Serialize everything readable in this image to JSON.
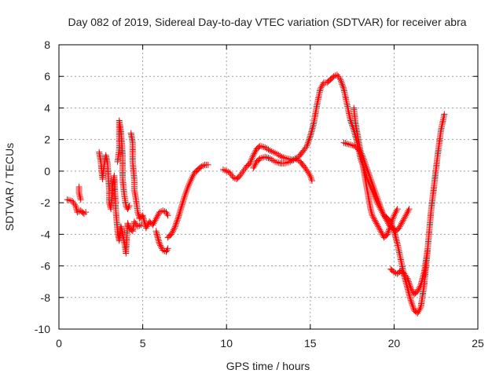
{
  "chart_data": {
    "type": "scatter",
    "title": "Day 082 of 2019, Sidereal Day-to-day VTEC variation (SDTVAR) for receiver abra",
    "xlabel": "GPS time / hours",
    "ylabel": "SDTVAR / TECUs",
    "xlim": [
      0,
      25
    ],
    "ylim": [
      -10,
      8
    ],
    "xticks": [
      0,
      5,
      10,
      15,
      20,
      25
    ],
    "xtick_labels": [
      "0",
      "5",
      "10",
      "15",
      "20",
      "25"
    ],
    "yticks": [
      -10,
      -8,
      -6,
      -4,
      -2,
      0,
      2,
      4,
      6,
      8
    ],
    "ytick_labels": [
      "-10",
      "-8",
      "-6",
      "-4",
      "-2",
      "0",
      "2",
      "4",
      "6",
      "8"
    ],
    "grid": true,
    "marker": "+",
    "color": "#ff0000",
    "series": [
      {
        "name": "segment-1",
        "points": [
          [
            0.5,
            -1.8
          ],
          [
            0.8,
            -1.9
          ],
          [
            1.0,
            -2.2
          ],
          [
            1.1,
            -2.6
          ],
          [
            1.3,
            -2.5
          ],
          [
            1.5,
            -2.7
          ],
          [
            1.6,
            -2.6
          ]
        ]
      },
      {
        "name": "segment-2",
        "points": [
          [
            1.2,
            -1.0
          ],
          [
            1.2,
            -1.4
          ],
          [
            1.3,
            -1.8
          ]
        ]
      },
      {
        "name": "segment-3",
        "points": [
          [
            2.4,
            1.2
          ],
          [
            2.5,
            0.6
          ],
          [
            2.6,
            -0.5
          ],
          [
            2.7,
            0.4
          ],
          [
            2.8,
            1.0
          ],
          [
            2.9,
            0.5
          ],
          [
            3.0,
            -1.2
          ],
          [
            3.0,
            -2.0
          ],
          [
            3.1,
            -2.4
          ],
          [
            3.2,
            -0.8
          ],
          [
            3.3,
            -0.3
          ],
          [
            3.4,
            -2.6
          ],
          [
            3.5,
            -3.8
          ],
          [
            3.6,
            -4.4
          ],
          [
            3.7,
            -3.5
          ],
          [
            3.8,
            -4.0
          ],
          [
            3.9,
            -4.5
          ],
          [
            4.0,
            -5.2
          ],
          [
            4.1,
            -3.3
          ],
          [
            4.2,
            -3.6
          ],
          [
            4.4,
            -3.8
          ],
          [
            4.5,
            -3.2
          ],
          [
            4.7,
            -3.5
          ],
          [
            4.9,
            -3.4
          ]
        ]
      },
      {
        "name": "segment-4",
        "points": [
          [
            3.5,
            0.6
          ],
          [
            3.6,
            1.4
          ],
          [
            3.6,
            3.2
          ],
          [
            3.7,
            2.5
          ],
          [
            3.8,
            1.0
          ],
          [
            3.8,
            -0.5
          ],
          [
            3.9,
            -1.5
          ],
          [
            4.0,
            -2.2
          ],
          [
            4.1,
            -2.4
          ],
          [
            4.2,
            -2.2
          ]
        ]
      },
      {
        "name": "segment-5",
        "points": [
          [
            4.3,
            2.4
          ],
          [
            4.4,
            1.8
          ],
          [
            4.4,
            0.6
          ],
          [
            4.5,
            -0.6
          ],
          [
            4.5,
            -1.2
          ],
          [
            4.6,
            -1.8
          ],
          [
            4.7,
            -2.6
          ],
          [
            4.8,
            -2.9
          ]
        ]
      },
      {
        "name": "segment-6",
        "points": [
          [
            4.8,
            -3.0
          ],
          [
            5.0,
            -2.8
          ],
          [
            5.2,
            -3.6
          ],
          [
            5.4,
            -3.2
          ],
          [
            5.6,
            -3.4
          ],
          [
            5.8,
            -3.0
          ],
          [
            6.0,
            -2.6
          ],
          [
            6.2,
            -2.5
          ],
          [
            6.4,
            -2.6
          ],
          [
            6.5,
            -2.8
          ]
        ]
      },
      {
        "name": "segment-7",
        "points": [
          [
            5.8,
            -3.8
          ],
          [
            6.0,
            -4.6
          ],
          [
            6.2,
            -5.0
          ],
          [
            6.4,
            -5.1
          ],
          [
            6.5,
            -4.9
          ]
        ]
      },
      {
        "name": "segment-8",
        "points": [
          [
            6.5,
            -4.2
          ],
          [
            6.7,
            -4.0
          ],
          [
            6.9,
            -3.6
          ],
          [
            7.1,
            -3.0
          ],
          [
            7.3,
            -2.3
          ],
          [
            7.5,
            -1.6
          ],
          [
            7.7,
            -1.0
          ],
          [
            7.9,
            -0.5
          ],
          [
            8.1,
            -0.1
          ],
          [
            8.3,
            0.1
          ],
          [
            8.5,
            0.3
          ],
          [
            8.7,
            0.4
          ],
          [
            8.9,
            0.4
          ]
        ]
      },
      {
        "name": "segment-9",
        "points": [
          [
            9.8,
            0.1
          ],
          [
            10.0,
            0.0
          ],
          [
            10.2,
            -0.1
          ],
          [
            10.4,
            -0.4
          ],
          [
            10.6,
            -0.5
          ],
          [
            10.8,
            -0.3
          ],
          [
            11.0,
            0.0
          ],
          [
            11.2,
            0.3
          ],
          [
            11.4,
            0.5
          ],
          [
            11.6,
            1.0
          ],
          [
            11.8,
            1.4
          ],
          [
            12.0,
            1.6
          ],
          [
            12.3,
            1.5
          ],
          [
            12.6,
            1.3
          ],
          [
            13.0,
            1.1
          ],
          [
            13.3,
            0.9
          ],
          [
            13.6,
            0.8
          ],
          [
            14.0,
            0.7
          ],
          [
            14.3,
            0.9
          ],
          [
            14.6,
            1.3
          ],
          [
            14.8,
            1.6
          ],
          [
            15.0,
            2.2
          ],
          [
            15.2,
            3.0
          ],
          [
            15.4,
            4.2
          ],
          [
            15.6,
            5.2
          ],
          [
            15.8,
            5.6
          ],
          [
            16.0,
            5.6
          ],
          [
            16.2,
            5.8
          ],
          [
            16.4,
            6.0
          ],
          [
            16.6,
            6.1
          ],
          [
            16.8,
            5.8
          ],
          [
            17.0,
            5.2
          ],
          [
            17.2,
            4.2
          ],
          [
            17.4,
            3.2
          ],
          [
            17.6,
            2.6
          ],
          [
            17.8,
            1.8
          ],
          [
            18.0,
            0.8
          ],
          [
            18.2,
            0.2
          ],
          [
            18.4,
            -0.5
          ],
          [
            18.6,
            -1.0
          ],
          [
            18.8,
            -1.5
          ],
          [
            19.0,
            -2.0
          ],
          [
            19.2,
            -2.4
          ],
          [
            19.4,
            -2.8
          ],
          [
            19.6,
            -3.0
          ],
          [
            19.8,
            -3.2
          ],
          [
            20.0,
            -3.8
          ],
          [
            20.2,
            -4.6
          ],
          [
            20.4,
            -5.6
          ],
          [
            20.6,
            -6.6
          ],
          [
            20.8,
            -7.4
          ],
          [
            21.0,
            -8.2
          ],
          [
            21.2,
            -8.8
          ],
          [
            21.4,
            -9.0
          ],
          [
            21.6,
            -8.6
          ],
          [
            21.8,
            -7.2
          ],
          [
            22.0,
            -5.0
          ],
          [
            22.2,
            -2.6
          ],
          [
            22.4,
            -0.8
          ],
          [
            22.6,
            1.0
          ],
          [
            22.8,
            2.6
          ],
          [
            23.0,
            3.6
          ]
        ]
      },
      {
        "name": "segment-10",
        "points": [
          [
            11.6,
            0.2
          ],
          [
            11.8,
            0.6
          ],
          [
            12.0,
            0.8
          ],
          [
            12.3,
            0.9
          ],
          [
            12.6,
            0.8
          ],
          [
            12.9,
            0.6
          ],
          [
            13.2,
            0.5
          ],
          [
            13.5,
            0.5
          ],
          [
            13.8,
            0.6
          ],
          [
            14.1,
            0.8
          ],
          [
            14.4,
            0.6
          ],
          [
            14.7,
            0.2
          ],
          [
            15.0,
            -0.3
          ],
          [
            15.1,
            -0.6
          ]
        ]
      },
      {
        "name": "segment-11",
        "points": [
          [
            17.0,
            1.8
          ],
          [
            17.3,
            1.7
          ],
          [
            17.6,
            1.6
          ],
          [
            17.9,
            1.4
          ],
          [
            18.1,
            1.0
          ],
          [
            18.3,
            0.4
          ],
          [
            18.5,
            -0.2
          ],
          [
            18.7,
            -0.8
          ],
          [
            18.9,
            -1.4
          ],
          [
            19.1,
            -2.0
          ],
          [
            19.3,
            -2.6
          ],
          [
            19.5,
            -3.0
          ],
          [
            19.7,
            -3.4
          ],
          [
            19.9,
            -3.6
          ],
          [
            20.1,
            -3.8
          ],
          [
            20.3,
            -3.6
          ],
          [
            20.5,
            -3.2
          ],
          [
            20.7,
            -2.8
          ],
          [
            20.9,
            -2.4
          ]
        ]
      },
      {
        "name": "segment-12",
        "points": [
          [
            17.6,
            4.0
          ],
          [
            17.7,
            3.0
          ],
          [
            17.8,
            2.4
          ],
          [
            17.9,
            1.8
          ],
          [
            18.0,
            1.2
          ],
          [
            18.1,
            0.6
          ],
          [
            18.2,
            0.0
          ],
          [
            18.3,
            -0.6
          ],
          [
            18.4,
            -1.2
          ],
          [
            18.5,
            -1.8
          ],
          [
            18.6,
            -2.4
          ],
          [
            18.7,
            -2.8
          ],
          [
            18.8,
            -3.0
          ],
          [
            19.0,
            -3.4
          ],
          [
            19.2,
            -3.8
          ],
          [
            19.4,
            -4.2
          ],
          [
            19.6,
            -4.0
          ],
          [
            19.8,
            -3.4
          ],
          [
            20.0,
            -2.8
          ],
          [
            20.2,
            -2.4
          ]
        ]
      },
      {
        "name": "segment-13",
        "points": [
          [
            19.8,
            -6.2
          ],
          [
            20.0,
            -6.4
          ],
          [
            20.2,
            -6.5
          ],
          [
            20.4,
            -6.3
          ],
          [
            20.6,
            -6.5
          ],
          [
            20.8,
            -6.8
          ],
          [
            21.0,
            -7.4
          ],
          [
            21.2,
            -7.8
          ],
          [
            21.4,
            -7.6
          ],
          [
            21.6,
            -7.2
          ],
          [
            21.8,
            -6.4
          ],
          [
            22.0,
            -5.0
          ]
        ]
      }
    ]
  }
}
